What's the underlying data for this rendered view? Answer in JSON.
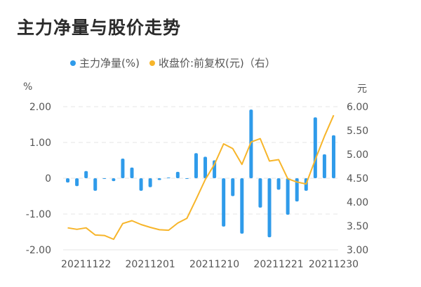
{
  "title": "主力净量与股价走势",
  "legend": {
    "items": [
      {
        "label": "主力净量(%)",
        "color": "#2f9bea"
      },
      {
        "label": "收盘价:前复权(元)（右）",
        "color": "#f7b52a"
      }
    ]
  },
  "axes": {
    "left_unit": "%",
    "right_unit": "元",
    "left_ticks": [
      "2.00",
      "1.00",
      "0",
      "-1.00",
      "-2.00"
    ],
    "right_ticks": [
      "6.00",
      "5.50",
      "5.00",
      "4.50",
      "4.00",
      "3.50",
      "3.00"
    ],
    "x_ticks": [
      "20211122",
      "20211201",
      "20211210",
      "20211221",
      "20211230"
    ]
  },
  "colors": {
    "bar": "#2f9bea",
    "line": "#f7b52a",
    "grid": "#e6e6e6",
    "text": "#555555",
    "title": "#2b2b2b"
  },
  "chart_data": {
    "type": "bar+line",
    "title": "主力净量与股价走势",
    "xlabel": "",
    "ylabel": "%",
    "y2label": "元",
    "ylim": [
      -2,
      2
    ],
    "y2lim": [
      3,
      6
    ],
    "grid": true,
    "legend_position": "top",
    "x_tick_labels": [
      "20211122",
      "20211201",
      "20211210",
      "20211221",
      "20211230"
    ],
    "x_tick_indices": [
      2,
      9,
      16,
      23,
      29
    ],
    "series": [
      {
        "name": "主力净量(%)",
        "type": "bar",
        "axis": "left",
        "values": [
          -0.12,
          -0.22,
          0.2,
          -0.35,
          -0.02,
          -0.08,
          0.55,
          0.3,
          -0.35,
          -0.25,
          -0.05,
          0.02,
          0.18,
          -0.01,
          0.7,
          0.6,
          0.5,
          -1.35,
          -0.5,
          -1.55,
          1.92,
          -0.82,
          -1.65,
          -0.32,
          -1.02,
          -0.65,
          -0.35,
          1.7,
          0.67,
          1.2
        ]
      },
      {
        "name": "收盘价:前复权(元)（右）",
        "type": "line",
        "axis": "right",
        "values": [
          3.46,
          3.43,
          3.46,
          3.31,
          3.3,
          3.22,
          3.55,
          3.61,
          3.53,
          3.47,
          3.42,
          3.41,
          3.56,
          3.66,
          4.06,
          4.47,
          4.79,
          5.22,
          5.12,
          4.79,
          5.26,
          5.33,
          4.86,
          4.89,
          4.49,
          4.42,
          4.38,
          4.89,
          5.38,
          5.82
        ]
      }
    ]
  }
}
